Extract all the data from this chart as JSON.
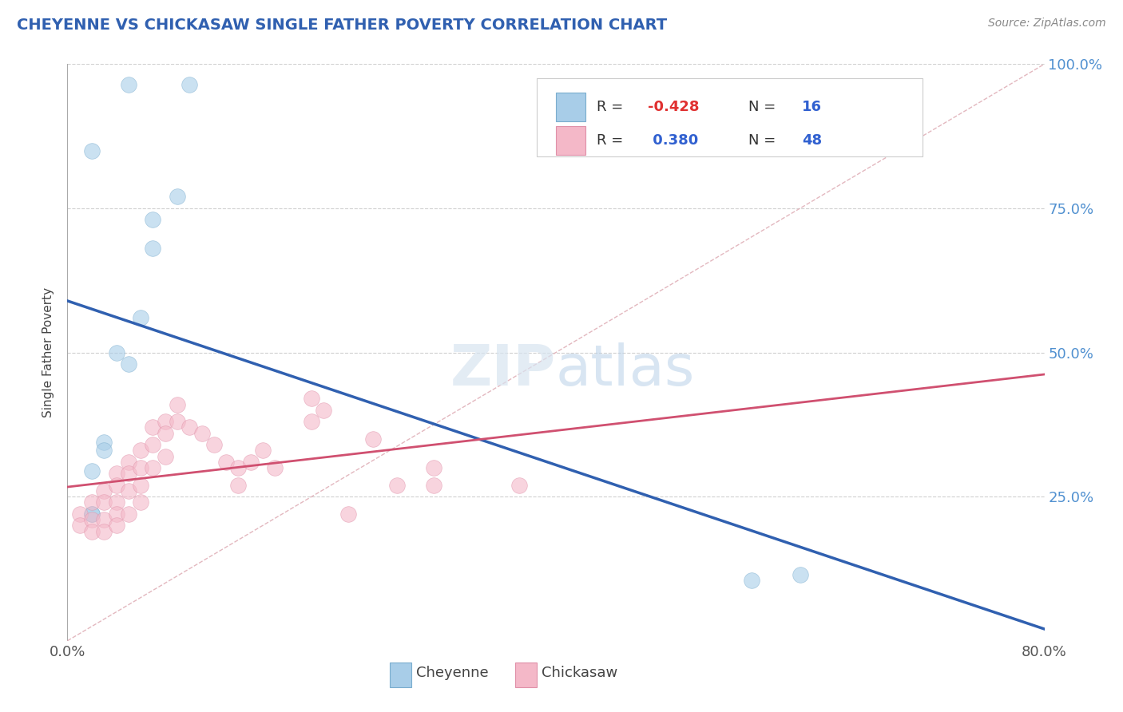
{
  "title": "CHEYENNE VS CHICKASAW SINGLE FATHER POVERTY CORRELATION CHART",
  "source": "Source: ZipAtlas.com",
  "ylabel": "Single Father Poverty",
  "xlim": [
    0.0,
    0.8
  ],
  "ylim": [
    0.0,
    1.0
  ],
  "cheyenne_color": "#a8cde8",
  "cheyenne_edge": "#7aadce",
  "chickasaw_color": "#f4b8c8",
  "chickasaw_edge": "#e090a8",
  "cheyenne_line_color": "#3060b0",
  "chickasaw_line_color": "#d05070",
  "diag_color": "#e0b0b8",
  "grid_color": "#d0d0d0",
  "right_tick_color": "#5090d0",
  "title_color": "#3060b0",
  "watermark_color": "#c8d8f0",
  "cheyenne_R": -0.428,
  "cheyenne_N": 16,
  "chickasaw_R": 0.38,
  "chickasaw_N": 48,
  "cheyenne_x": [
    0.02,
    0.05,
    0.1,
    0.09,
    0.07,
    0.07,
    0.06,
    0.04,
    0.05,
    0.03,
    0.03,
    0.02,
    0.02,
    0.56,
    0.6,
    0.02
  ],
  "cheyenne_y": [
    0.85,
    0.965,
    0.965,
    0.77,
    0.73,
    0.68,
    0.56,
    0.5,
    0.48,
    0.345,
    0.33,
    0.295,
    0.22,
    0.105,
    0.115,
    0.22
  ],
  "chickasaw_x": [
    0.01,
    0.01,
    0.02,
    0.02,
    0.02,
    0.03,
    0.03,
    0.03,
    0.03,
    0.04,
    0.04,
    0.04,
    0.04,
    0.04,
    0.05,
    0.05,
    0.05,
    0.05,
    0.06,
    0.06,
    0.06,
    0.06,
    0.07,
    0.07,
    0.07,
    0.08,
    0.08,
    0.08,
    0.09,
    0.09,
    0.1,
    0.11,
    0.12,
    0.13,
    0.14,
    0.14,
    0.15,
    0.16,
    0.17,
    0.2,
    0.2,
    0.21,
    0.23,
    0.25,
    0.27,
    0.3,
    0.3,
    0.37
  ],
  "chickasaw_y": [
    0.22,
    0.2,
    0.24,
    0.21,
    0.19,
    0.26,
    0.24,
    0.21,
    0.19,
    0.29,
    0.27,
    0.24,
    0.22,
    0.2,
    0.31,
    0.29,
    0.26,
    0.22,
    0.33,
    0.3,
    0.27,
    0.24,
    0.37,
    0.34,
    0.3,
    0.38,
    0.36,
    0.32,
    0.41,
    0.38,
    0.37,
    0.36,
    0.34,
    0.31,
    0.3,
    0.27,
    0.31,
    0.33,
    0.3,
    0.38,
    0.42,
    0.4,
    0.22,
    0.35,
    0.27,
    0.3,
    0.27,
    0.27
  ],
  "background_color": "#ffffff"
}
